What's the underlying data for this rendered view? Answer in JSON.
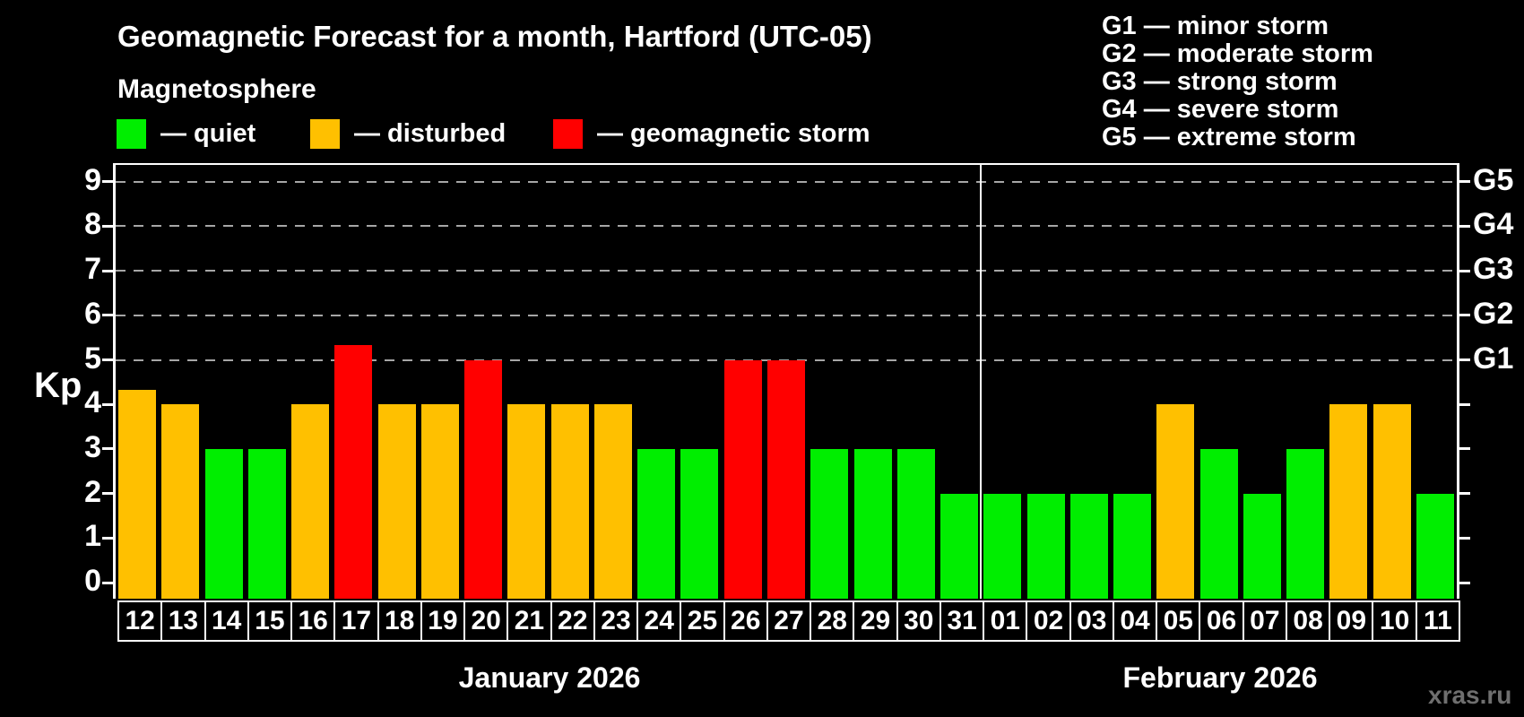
{
  "header": {
    "title": "Geomagnetic Forecast for a month, Hartford (UTC-05)",
    "subtitle": "Magnetosphere",
    "watermark": "xras.ru"
  },
  "legend": {
    "items": [
      {
        "name": "quiet",
        "label": "— quiet",
        "color": "#00ee00"
      },
      {
        "name": "disturbed",
        "label": "— disturbed",
        "color": "#ffc000"
      },
      {
        "name": "geomagnetic-storm",
        "label": "— geomagnetic storm",
        "color": "#ff0000"
      }
    ]
  },
  "g_scale_legend": {
    "lines": [
      "G1 — minor storm",
      "G2 — moderate storm",
      "G3 — strong storm",
      "G4 — severe storm",
      "G5 — extreme storm"
    ]
  },
  "axes": {
    "y_label": "Kp",
    "y_ticks": [
      0,
      1,
      2,
      3,
      4,
      5,
      6,
      7,
      8,
      9
    ],
    "gridline_values": [
      5,
      6,
      7,
      8,
      9
    ],
    "right_labels": [
      {
        "value": 5,
        "label": "G1"
      },
      {
        "value": 6,
        "label": "G2"
      },
      {
        "value": 7,
        "label": "G3"
      },
      {
        "value": 8,
        "label": "G4"
      },
      {
        "value": 9,
        "label": "G5"
      }
    ]
  },
  "months": [
    {
      "label": "January 2026",
      "days": 20
    },
    {
      "label": "February 2026",
      "days": 11
    }
  ],
  "chart_data": {
    "type": "bar",
    "title": "Geomagnetic Forecast for a month, Hartford (UTC-05)",
    "subtitle": "Magnetosphere",
    "ylabel": "Kp",
    "ylim": [
      0,
      9.4
    ],
    "grid": "dashed horizontal lines at Kp 5..9 labeled G1..G5 on right axis",
    "legend_position": "top-left",
    "categories": [
      "12",
      "13",
      "14",
      "15",
      "16",
      "17",
      "18",
      "19",
      "20",
      "21",
      "22",
      "23",
      "24",
      "25",
      "26",
      "27",
      "28",
      "29",
      "30",
      "31",
      "01",
      "02",
      "03",
      "04",
      "05",
      "06",
      "07",
      "08",
      "09",
      "10",
      "11"
    ],
    "values": [
      4.33,
      4,
      3,
      3,
      4,
      5.33,
      4,
      4,
      5,
      4,
      4,
      4,
      3,
      3,
      5,
      5,
      3,
      3,
      3,
      2,
      2,
      2,
      2,
      2,
      4,
      3,
      2,
      3,
      4,
      4,
      2
    ],
    "states": [
      "disturbed",
      "disturbed",
      "quiet",
      "quiet",
      "disturbed",
      "storm",
      "disturbed",
      "disturbed",
      "storm",
      "disturbed",
      "disturbed",
      "disturbed",
      "quiet",
      "quiet",
      "storm",
      "storm",
      "quiet",
      "quiet",
      "quiet",
      "quiet",
      "quiet",
      "quiet",
      "quiet",
      "quiet",
      "disturbed",
      "quiet",
      "quiet",
      "quiet",
      "disturbed",
      "disturbed",
      "quiet"
    ],
    "state_colors": {
      "quiet": "#00ee00",
      "disturbed": "#ffc000",
      "storm": "#ff0000"
    },
    "series": [
      {
        "name": "January 2026",
        "days": [
          "12",
          "13",
          "14",
          "15",
          "16",
          "17",
          "18",
          "19",
          "20",
          "21",
          "22",
          "23",
          "24",
          "25",
          "26",
          "27",
          "28",
          "29",
          "30",
          "31"
        ],
        "kp": [
          4.33,
          4,
          3,
          3,
          4,
          5.33,
          4,
          4,
          5,
          4,
          4,
          4,
          3,
          3,
          5,
          5,
          3,
          3,
          3,
          2
        ]
      },
      {
        "name": "February 2026",
        "days": [
          "01",
          "02",
          "03",
          "04",
          "05",
          "06",
          "07",
          "08",
          "09",
          "10",
          "11"
        ],
        "kp": [
          2,
          2,
          2,
          2,
          4,
          3,
          2,
          3,
          4,
          4,
          2
        ]
      }
    ]
  }
}
